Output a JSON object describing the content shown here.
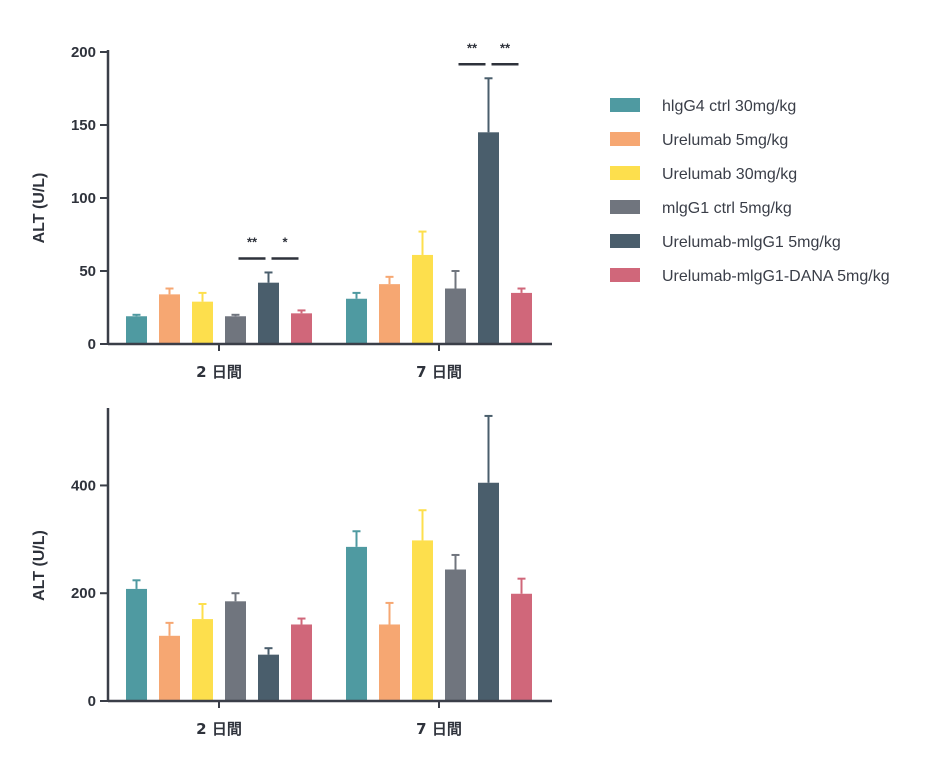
{
  "colors": {
    "axis": "#3a3e48",
    "series": [
      "#4f9aa1",
      "#f6a772",
      "#fddf4d",
      "#70757e",
      "#4a5e6c",
      "#d0677a"
    ]
  },
  "legend": {
    "items": [
      "hlgG4 ctrl 30mg/kg",
      "Urelumab 5mg/kg",
      "Urelumab 30mg/kg",
      "mlgG1 ctrl 5mg/kg",
      "Urelumab-mlgG1 5mg/kg",
      "Urelumab-mlgG1-DANA 5mg/kg"
    ]
  },
  "chart_data": [
    {
      "type": "bar",
      "ylabel": "ALT (U/L)",
      "ylim": [
        0,
        200
      ],
      "yticks": [
        0,
        50,
        100,
        150,
        200
      ],
      "categories": [
        "2 日間",
        "7 日間"
      ],
      "series": [
        {
          "name": "hlgG4 ctrl 30mg/kg",
          "values": [
            19,
            31
          ],
          "errors": [
            1,
            4
          ]
        },
        {
          "name": "Urelumab 5mg/kg",
          "values": [
            34,
            41
          ],
          "errors": [
            4,
            5
          ]
        },
        {
          "name": "Urelumab 30mg/kg",
          "values": [
            29,
            61
          ],
          "errors": [
            6,
            16
          ]
        },
        {
          "name": "mlgG1 ctrl 5mg/kg",
          "values": [
            19,
            38
          ],
          "errors": [
            1,
            12
          ]
        },
        {
          "name": "Urelumab-mlgG1 5mg/kg",
          "values": [
            42,
            145
          ],
          "errors": [
            7,
            37
          ]
        },
        {
          "name": "Urelumab-mlgG1-DANA 5mg/kg",
          "values": [
            21,
            35
          ],
          "errors": [
            2,
            3
          ]
        }
      ],
      "significance": [
        {
          "group": 0,
          "from_series": 3,
          "to_series": 4,
          "label": "**"
        },
        {
          "group": 0,
          "from_series": 4,
          "to_series": 5,
          "label": "*"
        },
        {
          "group": 1,
          "from_series": 3,
          "to_series": 4,
          "label": "**"
        },
        {
          "group": 1,
          "from_series": 4,
          "to_series": 5,
          "label": "**"
        }
      ]
    },
    {
      "type": "bar",
      "ylabel": "ALT (U/L)",
      "ylim": [
        0,
        540
      ],
      "yticks": [
        0,
        200,
        400
      ],
      "categories": [
        "2 日間",
        "7 日間"
      ],
      "series": [
        {
          "name": "hlgG4 ctrl 30mg/kg",
          "values": [
            208,
            286
          ],
          "errors": [
            16,
            29
          ]
        },
        {
          "name": "Urelumab 5mg/kg",
          "values": [
            121,
            142
          ],
          "errors": [
            24,
            40
          ]
        },
        {
          "name": "Urelumab 30mg/kg",
          "values": [
            152,
            298
          ],
          "errors": [
            28,
            56
          ]
        },
        {
          "name": "mlgG1 ctrl 5mg/kg",
          "values": [
            185,
            244
          ],
          "errors": [
            15,
            27
          ]
        },
        {
          "name": "Urelumab-mlgG1 5mg/kg",
          "values": [
            86,
            405
          ],
          "errors": [
            12,
            124
          ]
        },
        {
          "name": "Urelumab-mlgG1-DANA 5mg/kg",
          "values": [
            142,
            199
          ],
          "errors": [
            11,
            28
          ]
        }
      ],
      "significance": []
    }
  ]
}
